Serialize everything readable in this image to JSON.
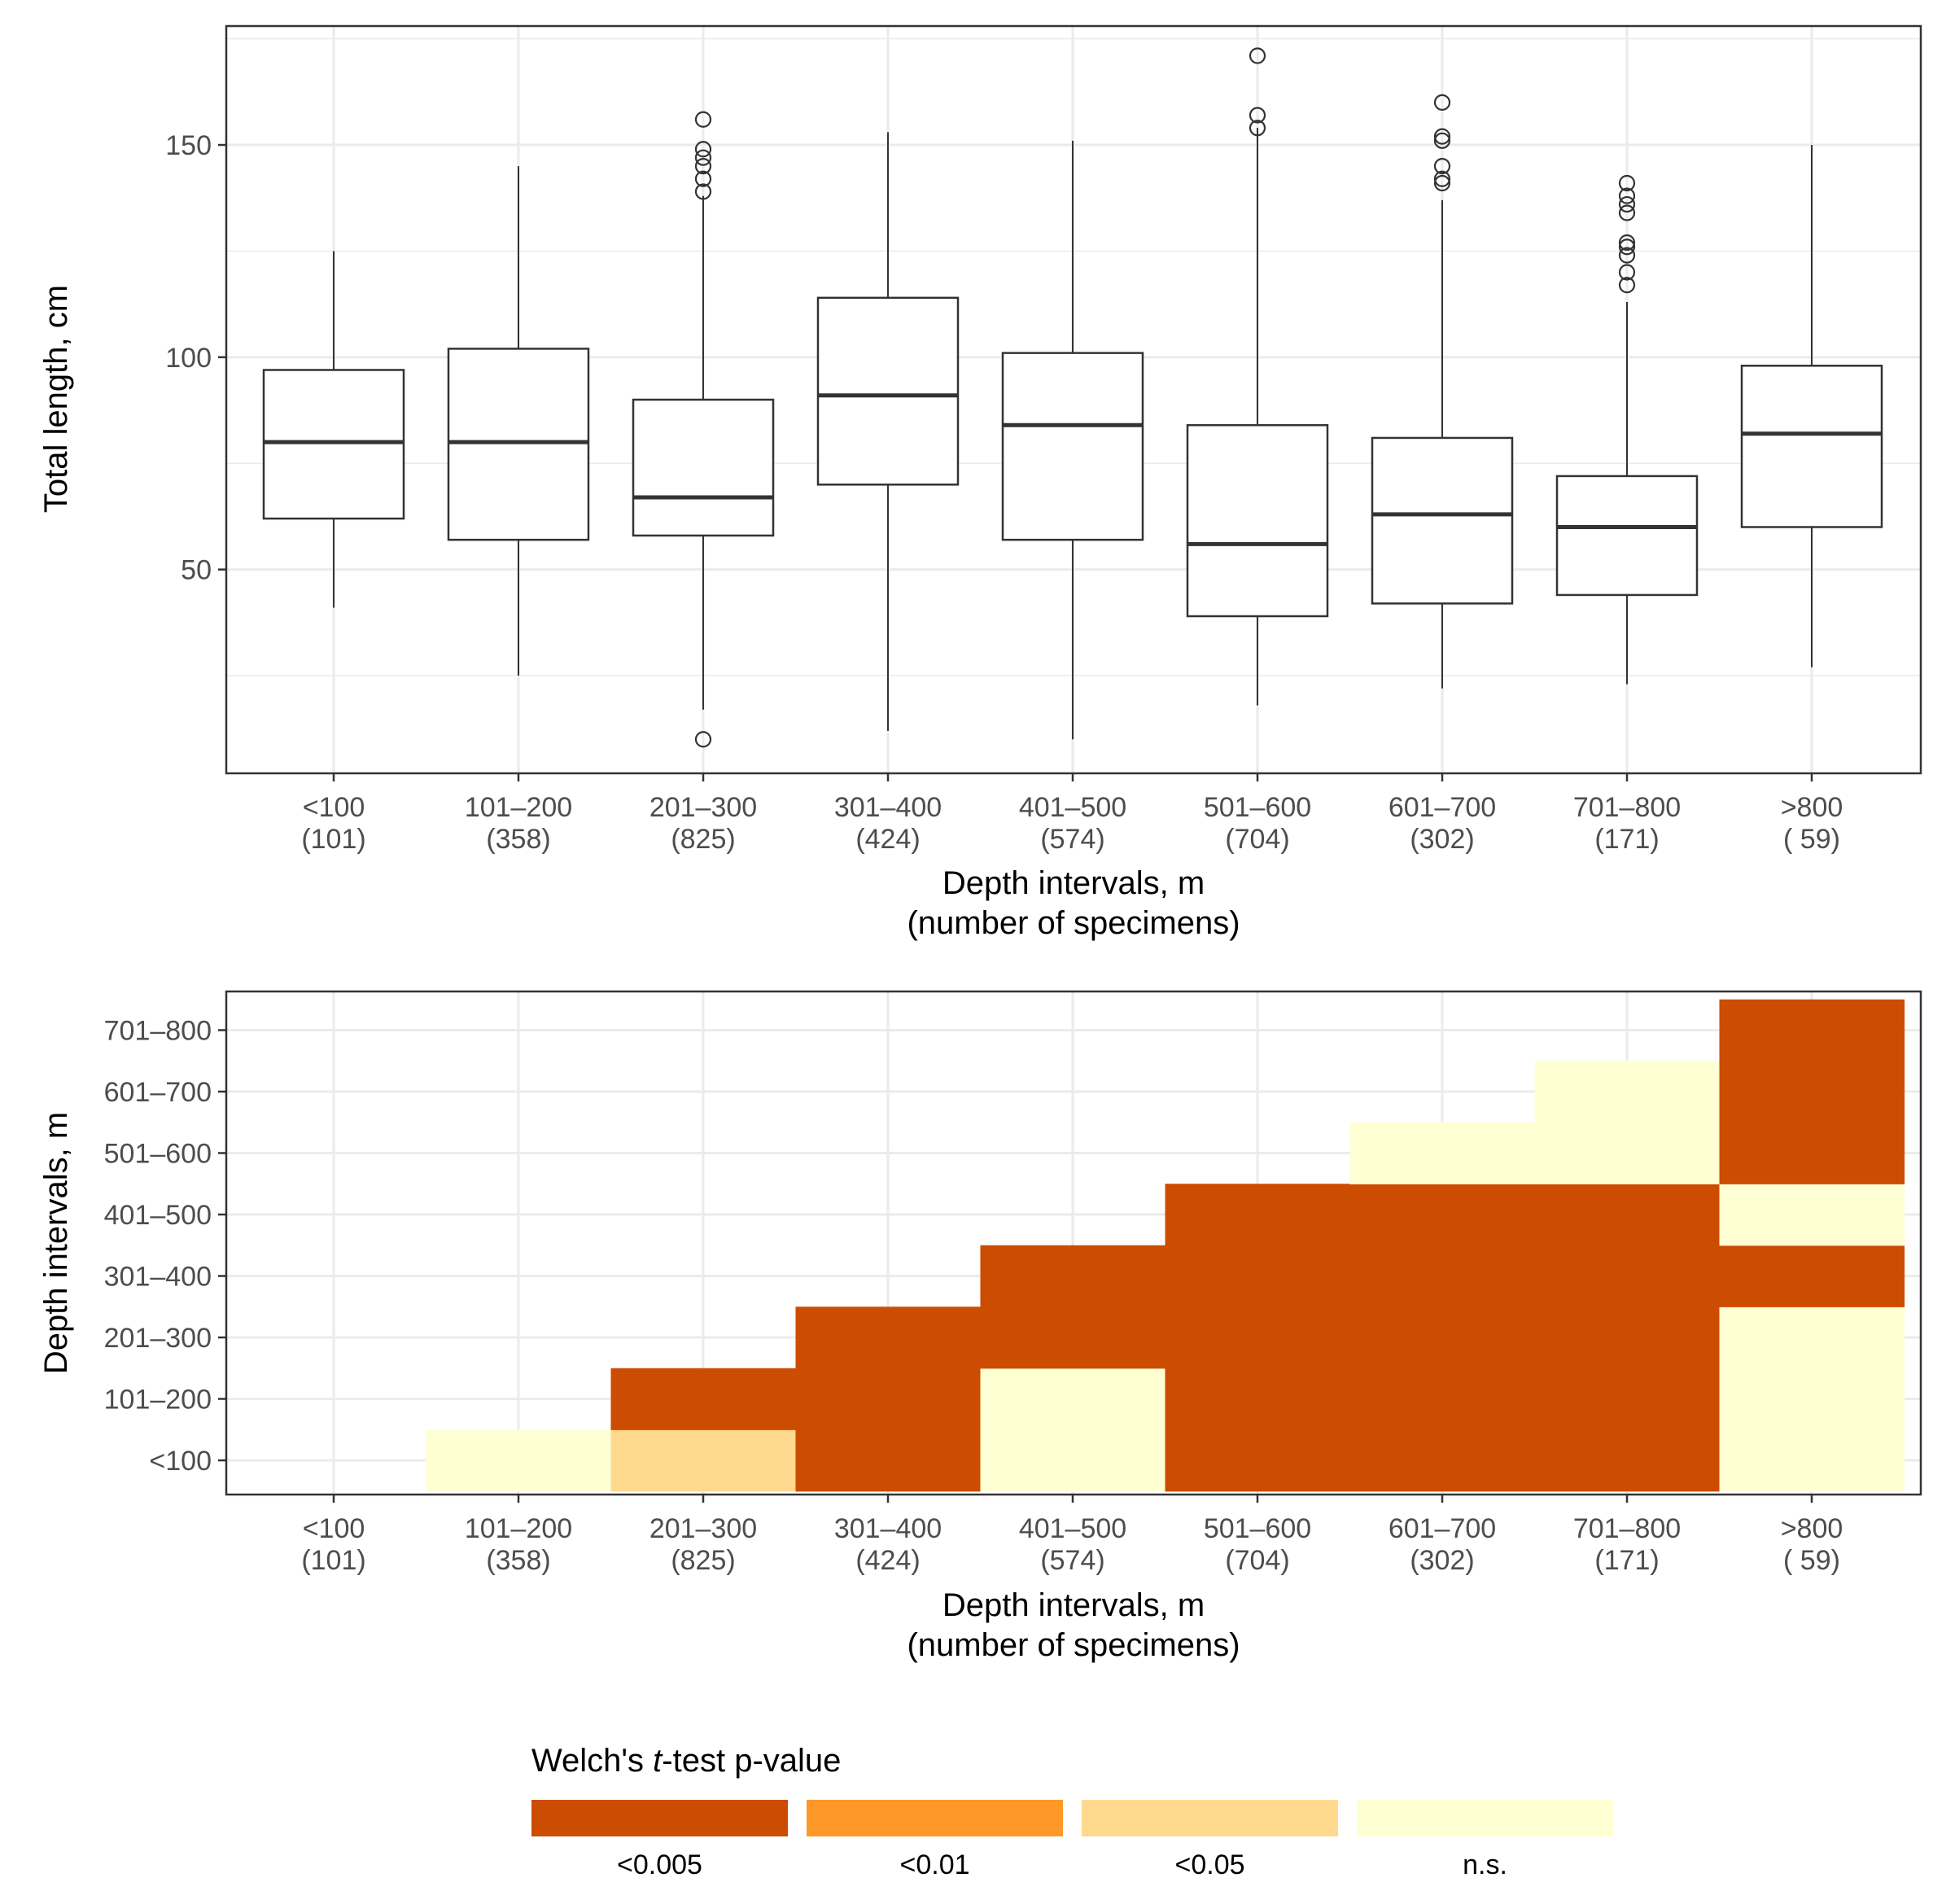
{
  "chart_data": [
    {
      "type": "box",
      "ylabel": "Total length, cm",
      "xlabel": "Depth intervals, m",
      "xlabel_line2": "(number of specimens)",
      "ylim": [
        2,
        178
      ],
      "yticks": [
        50,
        100,
        150
      ],
      "grid": true,
      "categories": [
        {
          "label": "<100",
          "n": "(101)",
          "q1": 62,
          "median": 80,
          "q3": 97,
          "whisker_low": 41,
          "whisker_high": 125,
          "outliers": []
        },
        {
          "label": "101–200",
          "n": "(358)",
          "q1": 57,
          "median": 80,
          "q3": 102,
          "whisker_low": 25,
          "whisker_high": 145,
          "outliers": []
        },
        {
          "label": "201–300",
          "n": "(825)",
          "q1": 58,
          "median": 67,
          "q3": 90,
          "whisker_low": 17,
          "whisker_high": 138,
          "outliers": [
            10,
            139,
            142,
            145,
            147,
            149,
            156
          ]
        },
        {
          "label": "301–400",
          "n": "(424)",
          "q1": 70,
          "median": 91,
          "q3": 114,
          "whisker_low": 12,
          "whisker_high": 153,
          "outliers": []
        },
        {
          "label": "401–500",
          "n": "(574)",
          "q1": 57,
          "median": 84,
          "q3": 101,
          "whisker_low": 10,
          "whisker_high": 151,
          "outliers": []
        },
        {
          "label": "501–600",
          "n": "(704)",
          "q1": 39,
          "median": 56,
          "q3": 84,
          "whisker_low": 18,
          "whisker_high": 154,
          "outliers": [
            154,
            157,
            171
          ]
        },
        {
          "label": "601–700",
          "n": "(302)",
          "q1": 42,
          "median": 63,
          "q3": 81,
          "whisker_low": 22,
          "whisker_high": 137,
          "outliers": [
            141,
            142,
            145,
            151,
            152,
            160
          ]
        },
        {
          "label": "701–800",
          "n": "(171)",
          "q1": 44,
          "median": 60,
          "q3": 72,
          "whisker_low": 23,
          "whisker_high": 113,
          "outliers": [
            117,
            120,
            124,
            126,
            127,
            134,
            136,
            138,
            141
          ]
        },
        {
          "label": ">800",
          "n": "( 59)",
          "q1": 60,
          "median": 82,
          "q3": 98,
          "whisker_low": 27,
          "whisker_high": 150,
          "outliers": []
        }
      ]
    },
    {
      "type": "heatmap",
      "ylabel": "Depth intervals, m",
      "xlabel": "Depth intervals, m",
      "xlabel_line2": "(number of specimens)",
      "x_categories": [
        "<100",
        "101–200",
        "201–300",
        "301–400",
        "401–500",
        "501–600",
        "601–700",
        "701–800",
        ">800"
      ],
      "x_counts": [
        "(101)",
        "(358)",
        "(825)",
        "(424)",
        "(574)",
        "(704)",
        "(302)",
        "(171)",
        "( 59)"
      ],
      "y_categories": [
        "<100",
        "101–200",
        "201–300",
        "301–400",
        "401–500",
        "501–600",
        "601–700",
        "701–800"
      ],
      "grid": true,
      "cells": [
        {
          "x": "101–200",
          "y": "<100",
          "value": "n.s."
        },
        {
          "x": "201–300",
          "y": "<100",
          "value": "<0.05"
        },
        {
          "x": "201–300",
          "y": "101–200",
          "value": "<0.005"
        },
        {
          "x": "301–400",
          "y": "<100",
          "value": "<0.005"
        },
        {
          "x": "301–400",
          "y": "101–200",
          "value": "<0.005"
        },
        {
          "x": "301–400",
          "y": "201–300",
          "value": "<0.005"
        },
        {
          "x": "401–500",
          "y": "<100",
          "value": "n.s."
        },
        {
          "x": "401–500",
          "y": "101–200",
          "value": "n.s."
        },
        {
          "x": "401–500",
          "y": "201–300",
          "value": "<0.005"
        },
        {
          "x": "401–500",
          "y": "301–400",
          "value": "<0.005"
        },
        {
          "x": "501–600",
          "y": "<100",
          "value": "<0.005"
        },
        {
          "x": "501–600",
          "y": "101–200",
          "value": "<0.005"
        },
        {
          "x": "501–600",
          "y": "201–300",
          "value": "<0.005"
        },
        {
          "x": "501–600",
          "y": "301–400",
          "value": "<0.005"
        },
        {
          "x": "501–600",
          "y": "401–500",
          "value": "<0.005"
        },
        {
          "x": "601–700",
          "y": "<100",
          "value": "<0.005"
        },
        {
          "x": "601–700",
          "y": "101–200",
          "value": "<0.005"
        },
        {
          "x": "601–700",
          "y": "201–300",
          "value": "<0.005"
        },
        {
          "x": "601–700",
          "y": "301–400",
          "value": "<0.005"
        },
        {
          "x": "601–700",
          "y": "401–500",
          "value": "<0.005"
        },
        {
          "x": "601–700",
          "y": "501–600",
          "value": "n.s."
        },
        {
          "x": "701–800",
          "y": "<100",
          "value": "<0.005"
        },
        {
          "x": "701–800",
          "y": "101–200",
          "value": "<0.005"
        },
        {
          "x": "701–800",
          "y": "201–300",
          "value": "<0.005"
        },
        {
          "x": "701–800",
          "y": "301–400",
          "value": "<0.005"
        },
        {
          "x": "701–800",
          "y": "401–500",
          "value": "<0.005"
        },
        {
          "x": "701–800",
          "y": "501–600",
          "value": "n.s."
        },
        {
          "x": "701–800",
          "y": "601–700",
          "value": "n.s."
        },
        {
          "x": ">800",
          "y": "<100",
          "value": "n.s."
        },
        {
          "x": ">800",
          "y": "101–200",
          "value": "n.s."
        },
        {
          "x": ">800",
          "y": "201–300",
          "value": "n.s."
        },
        {
          "x": ">800",
          "y": "301–400",
          "value": "<0.005"
        },
        {
          "x": ">800",
          "y": "401–500",
          "value": "n.s."
        },
        {
          "x": ">800",
          "y": "501–600",
          "value": "<0.005"
        },
        {
          "x": ">800",
          "y": "601–700",
          "value": "<0.005"
        },
        {
          "x": ">800",
          "y": "701–800",
          "value": "<0.005"
        }
      ],
      "legend": {
        "title_prefix": "Welch's ",
        "title_italic": "t",
        "title_suffix": "-test p-value",
        "placement": "bottom",
        "items": [
          {
            "label": "<0.005",
            "color": "#cc4c02"
          },
          {
            "label": "<0.01",
            "color": "#fe9929"
          },
          {
            "label": "<0.05",
            "color": "#fed98e"
          },
          {
            "label": "n.s.",
            "color": "#ffffd4"
          }
        ]
      }
    }
  ]
}
